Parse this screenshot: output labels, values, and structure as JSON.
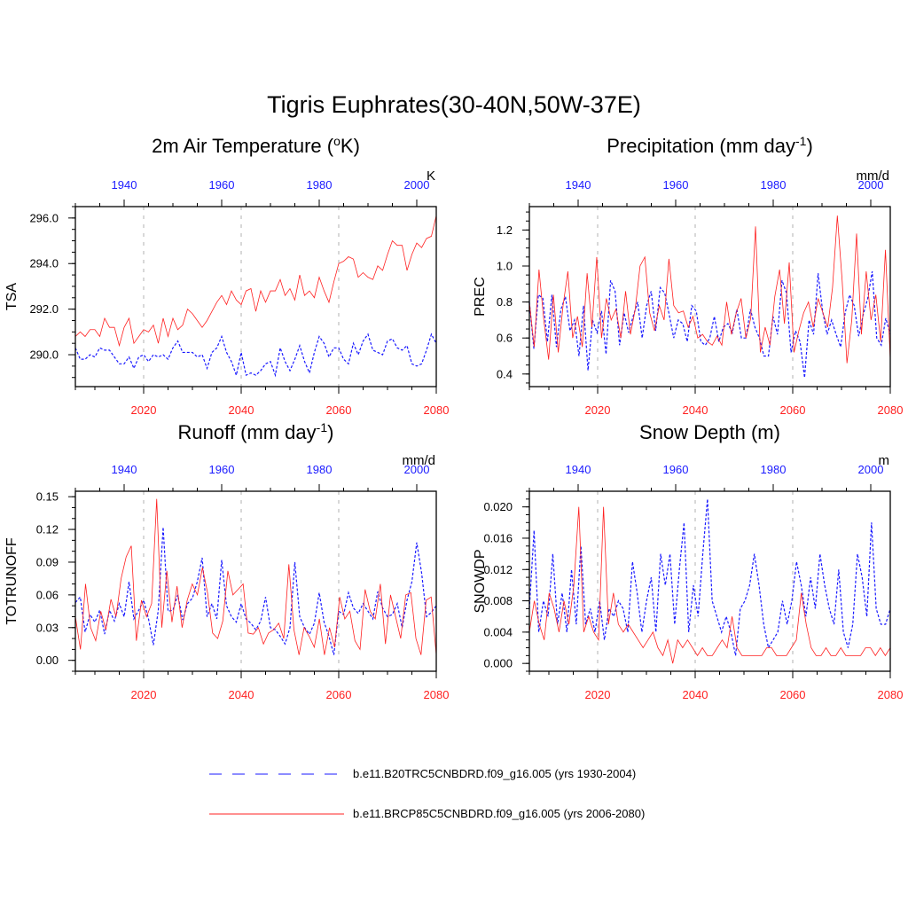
{
  "figure_title": "Tigris Euphrates(30-40N,50W-37E)",
  "colors": {
    "historical": "#1a1aff",
    "future": "#ff2020",
    "grid": "#b0b0b0",
    "axis": "#000000"
  },
  "legend": [
    {
      "label": "b.e11.B20TRC5CNBDRD.f09_g16.005 (yrs 1930-2004)",
      "style": "dashed",
      "color": "#1a1aff"
    },
    {
      "label": "b.e11.BRCP85C5CNBDRD.f09_g16.005 (yrs 2006-2080)",
      "style": "solid",
      "color": "#ff2020"
    }
  ],
  "chart_data": [
    {
      "type": "line",
      "title_main": "2m Air Temperature (",
      "title_sup": "o",
      "title_tail": "K)",
      "units": "K",
      "ylabel": "TSA",
      "ylim": [
        288.6,
        296.5
      ],
      "yticks": [
        290,
        292,
        294,
        296
      ],
      "ytick_labels": [
        "290.0",
        "292.0",
        "294.0",
        "296.0"
      ],
      "yminor": 0.5,
      "x_bottom_range": [
        2006,
        2080
      ],
      "x_bottom_ticks": [
        2020,
        2040,
        2060,
        2080
      ],
      "x_top_range": [
        1930,
        2004
      ],
      "x_top_ticks": [
        1940,
        1960,
        1980,
        2000
      ],
      "series": [
        {
          "name": "b.e11.B20TRC5CNBDRD.f09_g16.005 (yrs 1930-2004)",
          "style": "dashed",
          "values": [
            290.3,
            289.8,
            289.8,
            290.0,
            289.9,
            290.3,
            290.2,
            290.2,
            289.9,
            289.6,
            289.6,
            289.9,
            289.4,
            289.9,
            290.0,
            289.7,
            290.0,
            289.9,
            290.0,
            289.8,
            290.3,
            290.6,
            290.1,
            290.1,
            290.1,
            289.9,
            290.0,
            289.4,
            290.1,
            290.3,
            290.8,
            290.1,
            289.7,
            289.1,
            290.1,
            289.1,
            289.2,
            289.1,
            289.3,
            289.6,
            289.7,
            289.1,
            290.3,
            289.7,
            289.3,
            289.8,
            290.4,
            289.7,
            289.2,
            290.1,
            290.8,
            290.5,
            289.9,
            290.3,
            290.3,
            289.8,
            289.6,
            290.5,
            290.0,
            290.6,
            290.9,
            290.2,
            290.1,
            290.0,
            290.6,
            290.7,
            290.3,
            290.2,
            290.4,
            289.6,
            289.5,
            289.6,
            290.2,
            290.9,
            290.5
          ]
        },
        {
          "name": "b.e11.BRCP85C5CNBDRD.f09_g16.005 (yrs 2006-2080)",
          "style": "solid",
          "values": [
            290.8,
            291.0,
            290.8,
            291.1,
            291.1,
            290.8,
            291.6,
            291.2,
            291.2,
            290.4,
            291.2,
            291.6,
            290.5,
            290.8,
            291.1,
            291.0,
            291.3,
            290.5,
            291.6,
            290.8,
            291.6,
            291.1,
            291.3,
            292.0,
            291.8,
            291.5,
            291.2,
            291.5,
            291.9,
            292.3,
            292.6,
            292.2,
            292.8,
            292.4,
            292.2,
            292.8,
            292.9,
            291.9,
            292.8,
            292.3,
            292.8,
            292.8,
            293.3,
            292.6,
            292.9,
            292.4,
            293.5,
            292.6,
            292.8,
            292.5,
            293.4,
            292.8,
            292.3,
            293.2,
            294.0,
            294.1,
            294.3,
            294.2,
            293.4,
            293.6,
            293.4,
            293.3,
            293.9,
            293.7,
            294.4,
            295.0,
            294.8,
            294.8,
            293.7,
            294.4,
            294.9,
            294.7,
            295.1,
            295.2,
            296.1
          ]
        }
      ]
    },
    {
      "type": "line",
      "title_main": "Precipitation (mm day",
      "title_sup": "-1",
      "title_tail": ")",
      "units": "mm/d",
      "ylabel": "PREC",
      "ylim": [
        0.33,
        1.33
      ],
      "yticks": [
        0.4,
        0.6,
        0.8,
        1.0,
        1.2
      ],
      "ytick_labels": [
        "0.4",
        "0.6",
        "0.8",
        "1.0",
        "1.2"
      ],
      "yminor": 0.05,
      "x_bottom_range": [
        2006,
        2080
      ],
      "x_bottom_ticks": [
        2020,
        2040,
        2060,
        2080
      ],
      "x_top_range": [
        1930,
        2004
      ],
      "x_top_ticks": [
        1940,
        1960,
        1980,
        2000
      ],
      "series": [
        {
          "name": "b.e11.B20TRC5CNBDRD.f09_g16.005 (yrs 1930-2004)",
          "style": "dashed",
          "values": [
            0.8,
            0.54,
            0.84,
            0.82,
            0.58,
            0.84,
            0.55,
            0.76,
            0.83,
            0.64,
            0.7,
            0.5,
            0.78,
            0.42,
            0.7,
            0.63,
            0.75,
            0.51,
            0.92,
            0.86,
            0.56,
            0.74,
            0.63,
            0.72,
            0.8,
            0.6,
            0.78,
            0.86,
            0.64,
            0.88,
            0.85,
            0.73,
            0.6,
            0.7,
            0.68,
            0.58,
            0.78,
            0.75,
            0.58,
            0.56,
            0.6,
            0.72,
            0.58,
            0.66,
            0.68,
            0.63,
            0.76,
            0.6,
            0.6,
            0.76,
            0.66,
            0.6,
            0.5,
            0.5,
            0.72,
            0.62,
            0.92,
            0.85,
            0.52,
            0.64,
            0.58,
            0.38,
            0.7,
            0.62,
            0.96,
            0.75,
            0.62,
            0.7,
            0.62,
            0.55,
            0.74,
            0.84,
            0.78,
            0.61,
            0.73,
            0.82,
            0.97,
            0.6,
            0.56,
            0.71,
            0.62
          ]
        },
        {
          "name": "b.e11.BRCP85C5CNBDRD.f09_g16.005 (yrs 2006-2080)",
          "style": "solid",
          "values": [
            0.8,
            0.55,
            0.98,
            0.7,
            0.48,
            0.84,
            0.52,
            0.78,
            0.97,
            0.6,
            0.72,
            0.55,
            0.96,
            0.66,
            1.05,
            0.6,
            0.82,
            0.7,
            0.76,
            0.6,
            0.86,
            0.62,
            0.76,
            1.0,
            1.05,
            0.74,
            0.64,
            0.78,
            0.7,
            1.04,
            0.78,
            0.74,
            0.75,
            0.66,
            0.72,
            0.6,
            0.62,
            0.58,
            0.56,
            0.61,
            0.56,
            0.8,
            0.62,
            0.74,
            0.82,
            0.6,
            0.71,
            1.22,
            0.52,
            0.66,
            0.56,
            0.83,
            0.98,
            0.68,
            1.02,
            0.52,
            0.64,
            0.74,
            0.8,
            0.66,
            0.82,
            0.74,
            0.66,
            0.88,
            1.28,
            0.92,
            0.46,
            0.7,
            1.18,
            0.62,
            0.97,
            0.7,
            0.84,
            0.58,
            1.09,
            0.48
          ]
        }
      ]
    },
    {
      "type": "line",
      "title_main": "Runoff (mm day",
      "title_sup": "-1",
      "title_tail": ")",
      "units": "mm/d",
      "ylabel": "TOTRUNOFF",
      "ylim": [
        -0.01,
        0.155
      ],
      "yticks": [
        0.0,
        0.03,
        0.06,
        0.09,
        0.12,
        0.15
      ],
      "ytick_labels": [
        "0.00",
        "0.03",
        "0.06",
        "0.09",
        "0.12",
        "0.15"
      ],
      "yminor": 0.01,
      "x_bottom_range": [
        2006,
        2080
      ],
      "x_bottom_ticks": [
        2020,
        2040,
        2060,
        2080
      ],
      "x_top_range": [
        1930,
        2004
      ],
      "x_top_ticks": [
        1940,
        1960,
        1980,
        2000
      ],
      "series": [
        {
          "name": "b.e11.B20TRC5CNBDRD.f09_g16.005 (yrs 1930-2004)",
          "style": "dashed",
          "values": [
            0.053,
            0.058,
            0.026,
            0.042,
            0.035,
            0.046,
            0.024,
            0.046,
            0.036,
            0.052,
            0.04,
            0.072,
            0.038,
            0.046,
            0.055,
            0.038,
            0.014,
            0.046,
            0.122,
            0.045,
            0.046,
            0.06,
            0.037,
            0.052,
            0.057,
            0.072,
            0.094,
            0.04,
            0.052,
            0.038,
            0.092,
            0.05,
            0.04,
            0.035,
            0.052,
            0.038,
            0.034,
            0.028,
            0.036,
            0.058,
            0.03,
            0.028,
            0.022,
            0.015,
            0.03,
            0.09,
            0.04,
            0.03,
            0.024,
            0.034,
            0.062,
            0.035,
            0.022,
            0.005,
            0.045,
            0.042,
            0.062,
            0.048,
            0.043,
            0.052,
            0.045,
            0.038,
            0.063,
            0.048,
            0.04,
            0.042,
            0.052,
            0.03,
            0.055,
            0.072,
            0.108,
            0.08,
            0.04,
            0.044,
            0.05
          ]
        },
        {
          "name": "b.e11.BRCP85C5CNBDRD.f09_g16.005 (yrs 2006-2080)",
          "style": "solid",
          "values": [
            0.04,
            0.01,
            0.07,
            0.03,
            0.018,
            0.045,
            0.028,
            0.056,
            0.04,
            0.075,
            0.095,
            0.105,
            0.018,
            0.055,
            0.04,
            0.052,
            0.148,
            0.03,
            0.082,
            0.035,
            0.068,
            0.03,
            0.055,
            0.07,
            0.06,
            0.085,
            0.062,
            0.025,
            0.02,
            0.036,
            0.082,
            0.06,
            0.065,
            0.07,
            0.025,
            0.024,
            0.03,
            0.015,
            0.025,
            0.028,
            0.034,
            0.02,
            0.088,
            0.028,
            0.005,
            0.03,
            0.022,
            0.012,
            0.038,
            0.005,
            0.03,
            0.012,
            0.058,
            0.038,
            0.045,
            0.018,
            0.01,
            0.065,
            0.045,
            0.038,
            0.07,
            0.015,
            0.06,
            0.04,
            0.02,
            0.06,
            0.062,
            0.02,
            0.005,
            0.055,
            0.058,
            0.005
          ]
        }
      ]
    },
    {
      "type": "line",
      "title_main": "Snow Depth (m)",
      "title_sup": "",
      "title_tail": "",
      "units": "m",
      "ylabel": "SNOWDP",
      "ylim": [
        -0.001,
        0.022
      ],
      "yticks": [
        0.0,
        0.004,
        0.008,
        0.012,
        0.016,
        0.02
      ],
      "ytick_labels": [
        "0.000",
        "0.004",
        "0.008",
        "0.012",
        "0.016",
        "0.020"
      ],
      "yminor": 0.001,
      "x_bottom_range": [
        2006,
        2080
      ],
      "x_bottom_ticks": [
        2020,
        2040,
        2060,
        2080
      ],
      "x_top_range": [
        1930,
        2004
      ],
      "x_top_ticks": [
        1940,
        1960,
        1980,
        2000
      ],
      "series": [
        {
          "name": "b.e11.B20TRC5CNBDRD.f09_g16.005 (yrs 1930-2004)",
          "style": "dashed",
          "values": [
            0.007,
            0.017,
            0.004,
            0.008,
            0.006,
            0.014,
            0.005,
            0.009,
            0.004,
            0.012,
            0.005,
            0.015,
            0.005,
            0.007,
            0.004,
            0.008,
            0.003,
            0.007,
            0.006,
            0.008,
            0.007,
            0.004,
            0.013,
            0.009,
            0.004,
            0.008,
            0.011,
            0.004,
            0.014,
            0.01,
            0.014,
            0.005,
            0.012,
            0.018,
            0.004,
            0.01,
            0.006,
            0.014,
            0.021,
            0.008,
            0.006,
            0.004,
            0.006,
            0.004,
            0.001,
            0.007,
            0.008,
            0.01,
            0.014,
            0.01,
            0.005,
            0.002,
            0.003,
            0.004,
            0.008,
            0.005,
            0.008,
            0.013,
            0.01,
            0.006,
            0.011,
            0.007,
            0.014,
            0.01,
            0.007,
            0.005,
            0.012,
            0.004,
            0.002,
            0.005,
            0.014,
            0.011,
            0.006,
            0.018,
            0.007,
            0.005,
            0.005,
            0.007
          ]
        },
        {
          "name": "b.e11.BRCP85C5CNBDRD.f09_g16.005 (yrs 2006-2080)",
          "style": "solid",
          "values": [
            0.004,
            0.008,
            0.005,
            0.003,
            0.009,
            0.007,
            0.004,
            0.008,
            0.005,
            0.01,
            0.02,
            0.004,
            0.006,
            0.004,
            0.003,
            0.02,
            0.005,
            0.009,
            0.005,
            0.004,
            0.005,
            0.004,
            0.003,
            0.002,
            0.003,
            0.004,
            0.002,
            0.001,
            0.003,
            0.0,
            0.003,
            0.002,
            0.003,
            0.002,
            0.001,
            0.002,
            0.001,
            0.001,
            0.002,
            0.003,
            0.002,
            0.006,
            0.002,
            0.001,
            0.001,
            0.001,
            0.001,
            0.001,
            0.002,
            0.002,
            0.001,
            0.001,
            0.001,
            0.002,
            0.003,
            0.009,
            0.005,
            0.002,
            0.001,
            0.001,
            0.002,
            0.001,
            0.001,
            0.002,
            0.001,
            0.001,
            0.001,
            0.001,
            0.002,
            0.002,
            0.001,
            0.002,
            0.001,
            0.002
          ]
        }
      ]
    }
  ]
}
